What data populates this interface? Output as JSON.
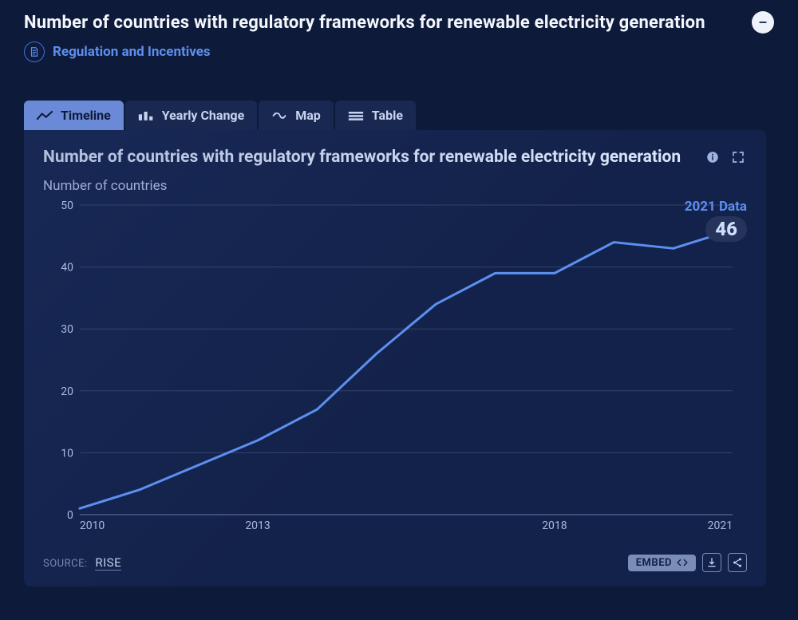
{
  "header": {
    "title": "Number of countries with regulatory frameworks for renewable electricity generation",
    "category_label": "Regulation and Incentives",
    "category_color": "#5d8ff0"
  },
  "tabs": [
    {
      "id": "timeline",
      "label": "Timeline",
      "active": true
    },
    {
      "id": "yearly",
      "label": "Yearly Change",
      "active": false
    },
    {
      "id": "map",
      "label": "Map",
      "active": false
    },
    {
      "id": "table",
      "label": "Table",
      "active": false
    }
  ],
  "chart": {
    "title": "Number of countries with regulatory frameworks for renewable electricity generation",
    "ylabel": "Number of countries",
    "type": "line",
    "background_color": "#13224a",
    "grid_color": "#34436c",
    "axis_text_color": "#a9b9de",
    "line_color": "#5d8ff0",
    "line_width": 3,
    "end_marker": {
      "radius": 5,
      "stroke": "#5d8ff0",
      "fill": "#13224a"
    },
    "x": {
      "min": 2010,
      "max": 2021,
      "ticks": [
        2010,
        2013,
        2018,
        2021
      ]
    },
    "y": {
      "min": 0,
      "max": 50,
      "ticks": [
        0,
        10,
        20,
        30,
        40,
        50
      ]
    },
    "series": {
      "years": [
        2010,
        2011,
        2012,
        2013,
        2014,
        2015,
        2016,
        2017,
        2018,
        2019,
        2020,
        2021
      ],
      "values": [
        1,
        4,
        8,
        12,
        17,
        26,
        34,
        39,
        39,
        44,
        43,
        46
      ]
    },
    "callout": {
      "label": "2021 Data",
      "value": "46",
      "color": "#5d8ff0",
      "value_bg": "#26335a",
      "value_text": "#cfe0ff"
    },
    "tick_fontsize": 14,
    "title_fontsize": 21
  },
  "footer": {
    "source_prefix": "SOURCE:",
    "source_name": "RISE",
    "embed_label": "EMBED"
  },
  "colors": {
    "page_bg": "#0e1a3a",
    "panel_bg": "#13224a",
    "tab_bg": "#182851",
    "tab_active_bg": "#6a89d6",
    "tab_active_fg": "#0e1a3a",
    "text_primary": "#f3f6fc",
    "text_muted": "#a9b9de"
  }
}
